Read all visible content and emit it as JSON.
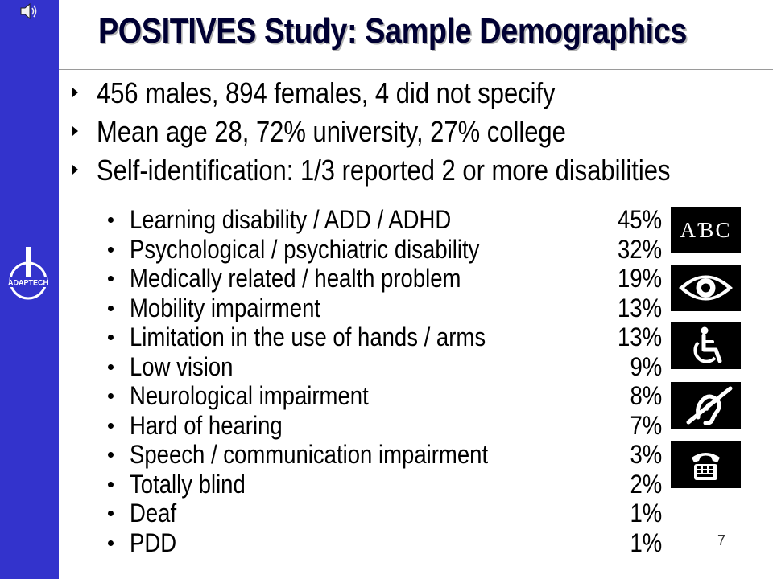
{
  "title": "POSITIVES Study: Sample Demographics",
  "bullets": [
    "456 males, 894 females, 4 did not specify",
    "Mean age 28, 72% university, 27% college",
    "Self-identification: 1/3 reported 2 or more disabilities"
  ],
  "disabilities": [
    {
      "label": "Learning disability / ADD / ADHD",
      "percent": "45%"
    },
    {
      "label": "Psychological / psychiatric disability",
      "percent": "32%"
    },
    {
      "label": "Medically related / health problem",
      "percent": "19%"
    },
    {
      "label": "Mobility impairment",
      "percent": "13%"
    },
    {
      "label": "Limitation in the use of hands / arms",
      "percent": "13%"
    },
    {
      "label": "Low vision",
      "percent": "9%"
    },
    {
      "label": "Neurological impairment",
      "percent": "8%"
    },
    {
      "label": "Hard of hearing",
      "percent": "7%"
    },
    {
      "label": "Speech / communication impairment",
      "percent": "3%"
    },
    {
      "label": "Totally blind",
      "percent": "2%"
    },
    {
      "label": "Deaf",
      "percent": "1%"
    },
    {
      "label": "PDD",
      "percent": "1%"
    }
  ],
  "icons": {
    "abc_text": "AƁC",
    "names": [
      "abc-reading-icon",
      "eye-icon",
      "wheelchair-icon",
      "hearing-loss-icon",
      "tty-icon"
    ]
  },
  "logo_text": "ADAPTECH",
  "slide_number": "7",
  "colors": {
    "sidebar": "#3333cc",
    "title": "#000033",
    "title_shadow": "#b3b3b3"
  }
}
